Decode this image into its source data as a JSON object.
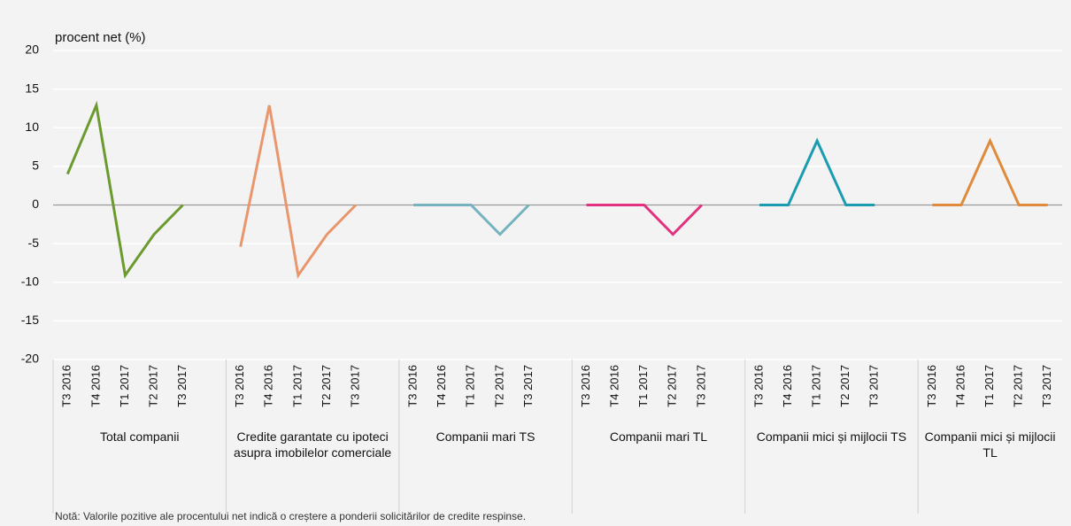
{
  "chart_data": {
    "type": "line",
    "y_label": "procent net (%)",
    "note": "Notă: Valorile pozitive ale procentului net indică o creștere a ponderii solicitărilor de credite respinse.",
    "categories": [
      "T3 2016",
      "T4 2016",
      "T1 2017",
      "T2 2017",
      "T3 2017"
    ],
    "series": [
      {
        "name": "Total companii",
        "color": "#6b9a2f",
        "values": [
          4,
          12.9,
          -9.1,
          -3.8,
          0
        ]
      },
      {
        "name": "Credite garantate cu ipoteci asupra imobilelor comerciale",
        "color": "#e9966d",
        "values": [
          -5.4,
          12.9,
          -9.1,
          -3.8,
          0
        ]
      },
      {
        "name": "Companii mari TS",
        "color": "#76b3bf",
        "values": [
          0,
          0,
          0,
          -3.8,
          0
        ]
      },
      {
        "name": "Companii mari TL",
        "color": "#e2327f",
        "values": [
          0,
          0,
          0,
          -3.8,
          0
        ]
      },
      {
        "name": "Companii mici și mijlocii TS",
        "color": "#1b9cb0",
        "values": [
          0,
          0,
          8.3,
          0,
          0
        ]
      },
      {
        "name": "Companii mici și mijlocii TL",
        "color": "#e08a3b",
        "values": [
          0,
          0,
          8.3,
          0,
          0
        ]
      }
    ],
    "ylim": [
      -20,
      20
    ],
    "yticks": [
      -20,
      -15,
      -10,
      -5,
      0,
      5,
      10,
      15,
      20
    ],
    "grid": true
  }
}
